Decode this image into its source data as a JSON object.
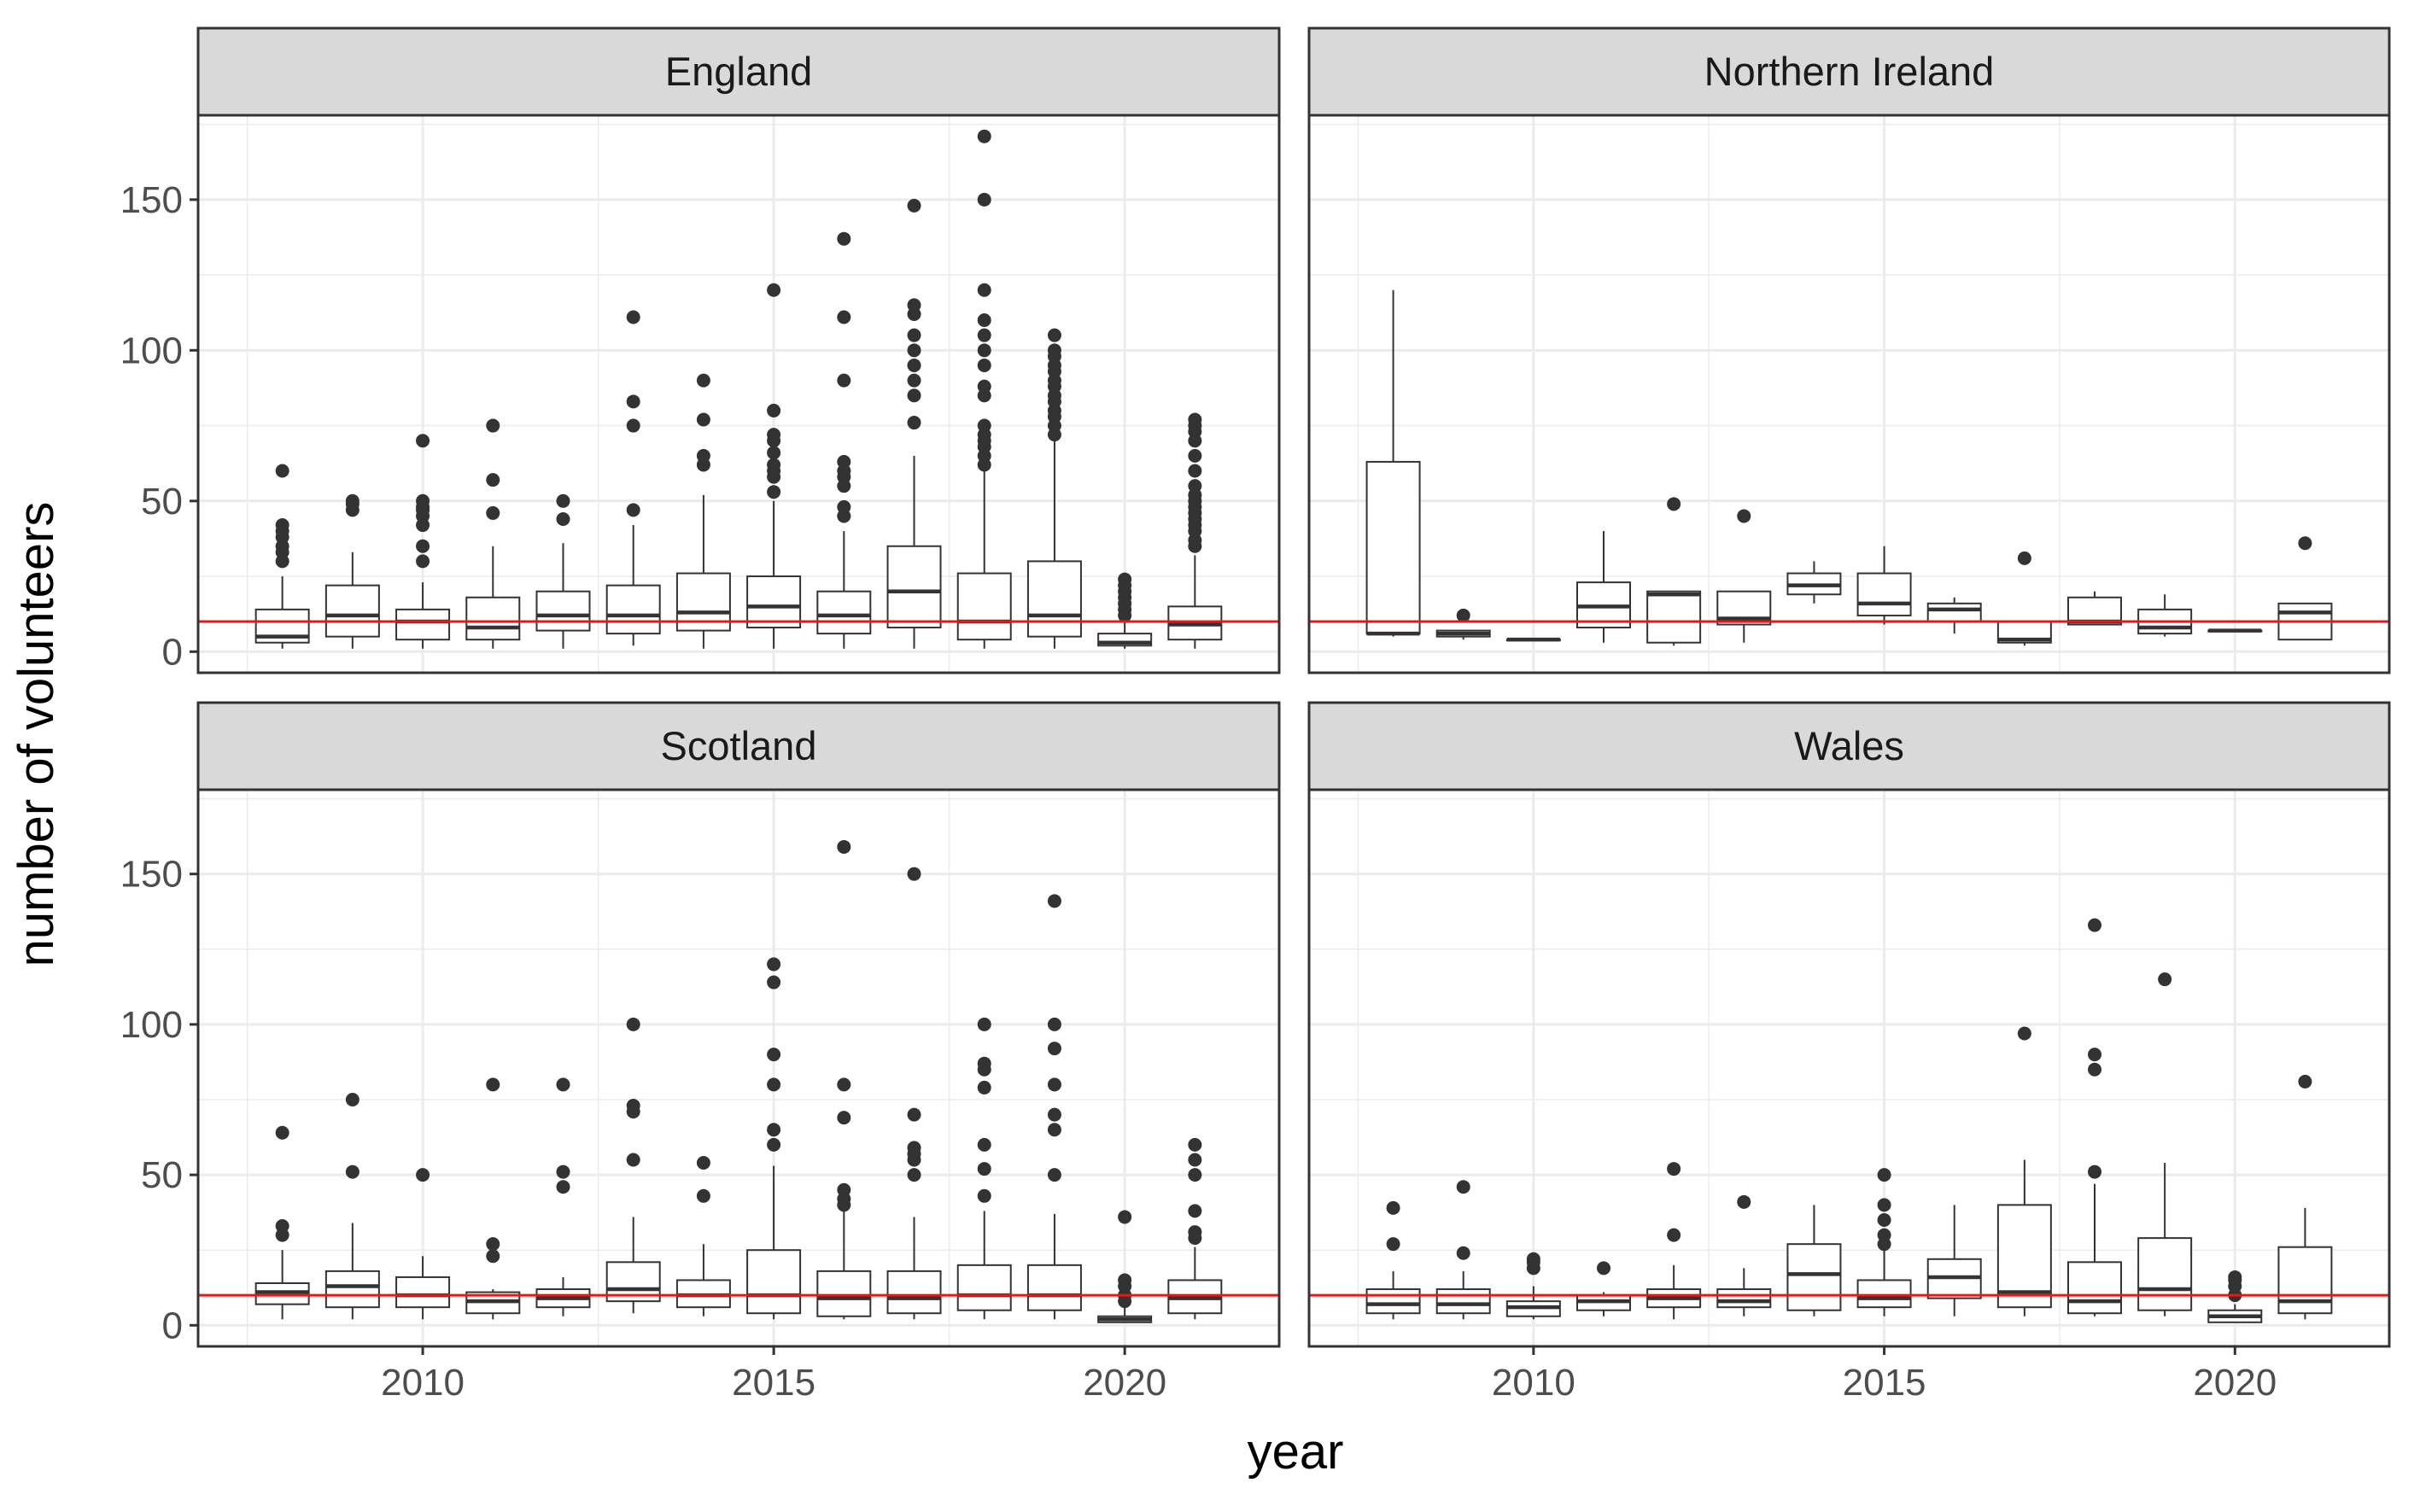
{
  "chart_data": {
    "type": "box",
    "facet_by": "country",
    "xlabel": "year",
    "ylabel": "number of volunteers",
    "x_ticks": [
      2010,
      2015,
      2020
    ],
    "y_ticks": [
      0,
      50,
      100,
      150
    ],
    "xlim": [
      2006.8,
      2022.2
    ],
    "ylim": [
      -7,
      178
    ],
    "reference_line": {
      "y": 10,
      "color": "#e31a1c"
    },
    "colors": {
      "box": "#333333",
      "points": "#333333",
      "strip_bg": "#d9d9d9",
      "grid": "#ebebeb"
    },
    "panels": [
      {
        "name": "England",
        "boxes": [
          {
            "year": 2008,
            "lw": 1,
            "q1": 3,
            "med": 5,
            "q3": 14,
            "hw": 25,
            "out": [
              30,
              33,
              35,
              38,
              40,
              42,
              60
            ]
          },
          {
            "year": 2009,
            "lw": 1,
            "q1": 5,
            "med": 12,
            "q3": 22,
            "hw": 33,
            "out": [
              47,
              49,
              50
            ]
          },
          {
            "year": 2010,
            "lw": 1,
            "q1": 4,
            "med": 10,
            "q3": 14,
            "hw": 23,
            "out": [
              30,
              35,
              42,
              45,
              47,
              48,
              50,
              70
            ]
          },
          {
            "year": 2011,
            "lw": 1,
            "q1": 4,
            "med": 8,
            "q3": 18,
            "hw": 35,
            "out": [
              46,
              57,
              75
            ]
          },
          {
            "year": 2012,
            "lw": 1,
            "q1": 7,
            "med": 12,
            "q3": 20,
            "hw": 36,
            "out": [
              44,
              50
            ]
          },
          {
            "year": 2013,
            "lw": 2,
            "q1": 6,
            "med": 12,
            "q3": 22,
            "hw": 42,
            "out": [
              47,
              75,
              83,
              111
            ]
          },
          {
            "year": 2014,
            "lw": 1,
            "q1": 7,
            "med": 13,
            "q3": 26,
            "hw": 52,
            "out": [
              62,
              65,
              77,
              90
            ]
          },
          {
            "year": 2015,
            "lw": 1,
            "q1": 8,
            "med": 15,
            "q3": 25,
            "hw": 50,
            "out": [
              53,
              58,
              60,
              62,
              66,
              70,
              72,
              80,
              120
            ]
          },
          {
            "year": 2016,
            "lw": 1,
            "q1": 6,
            "med": 12,
            "q3": 20,
            "hw": 40,
            "out": [
              45,
              48,
              55,
              58,
              60,
              63,
              90,
              111,
              137
            ]
          },
          {
            "year": 2017,
            "lw": 1,
            "q1": 8,
            "med": 20,
            "q3": 35,
            "hw": 65,
            "out": [
              76,
              85,
              90,
              95,
              100,
              105,
              112,
              115,
              148
            ]
          },
          {
            "year": 2018,
            "lw": 1,
            "q1": 4,
            "med": 10,
            "q3": 26,
            "hw": 60,
            "out": [
              62,
              65,
              68,
              70,
              72,
              75,
              85,
              88,
              95,
              100,
              105,
              110,
              120,
              150,
              171
            ]
          },
          {
            "year": 2019,
            "lw": 1,
            "q1": 5,
            "med": 12,
            "q3": 30,
            "hw": 70,
            "out": [
              72,
              75,
              78,
              80,
              83,
              85,
              88,
              90,
              93,
              95,
              98,
              100,
              105
            ]
          },
          {
            "year": 2020,
            "lw": 1,
            "q1": 2,
            "med": 3,
            "q3": 6,
            "hw": 10,
            "out": [
              12,
              14,
              16,
              18,
              20,
              22,
              24
            ]
          },
          {
            "year": 2021,
            "lw": 1,
            "q1": 4,
            "med": 9,
            "q3": 15,
            "hw": 32,
            "out": [
              35,
              37,
              40,
              42,
              44,
              46,
              48,
              50,
              52,
              55,
              60,
              65,
              70,
              73,
              75,
              77
            ]
          }
        ]
      },
      {
        "name": "Northern Ireland",
        "boxes": [
          {
            "year": 2008,
            "lw": 5,
            "q1": 6,
            "med": 6,
            "q3": 63,
            "hw": 120,
            "out": []
          },
          {
            "year": 2009,
            "lw": 4,
            "q1": 5,
            "med": 6,
            "q3": 7,
            "hw": 7,
            "out": [
              12
            ]
          },
          {
            "year": 2010,
            "lw": 4,
            "q1": 4,
            "med": 4,
            "q3": 4,
            "hw": 4,
            "out": []
          },
          {
            "year": 2011,
            "lw": 3,
            "q1": 8,
            "med": 15,
            "q3": 23,
            "hw": 40,
            "out": []
          },
          {
            "year": 2012,
            "lw": 2,
            "q1": 3,
            "med": 19,
            "q3": 20,
            "hw": 20,
            "out": [
              49
            ]
          },
          {
            "year": 2013,
            "lw": 3,
            "q1": 9,
            "med": 11,
            "q3": 20,
            "hw": 20,
            "out": [
              45
            ]
          },
          {
            "year": 2014,
            "lw": 16,
            "q1": 19,
            "med": 22,
            "q3": 26,
            "hw": 30,
            "out": []
          },
          {
            "year": 2015,
            "lw": 9,
            "q1": 12,
            "med": 16,
            "q3": 26,
            "hw": 35,
            "out": []
          },
          {
            "year": 2016,
            "lw": 6,
            "q1": 10,
            "med": 14,
            "q3": 16,
            "hw": 18,
            "out": []
          },
          {
            "year": 2017,
            "lw": 2,
            "q1": 3,
            "med": 4,
            "q3": 10,
            "hw": 10,
            "out": [
              31
            ]
          },
          {
            "year": 2018,
            "lw": 9,
            "q1": 9,
            "med": 10,
            "q3": 18,
            "hw": 20,
            "out": []
          },
          {
            "year": 2019,
            "lw": 5,
            "q1": 6,
            "med": 8,
            "q3": 14,
            "hw": 19,
            "out": []
          },
          {
            "year": 2020,
            "lw": 7,
            "q1": 7,
            "med": 7,
            "q3": 7,
            "hw": 7,
            "out": []
          },
          {
            "year": 2021,
            "lw": 4,
            "q1": 4,
            "med": 13,
            "q3": 16,
            "hw": 16,
            "out": [
              36
            ]
          }
        ]
      },
      {
        "name": "Scotland",
        "boxes": [
          {
            "year": 2008,
            "lw": 2,
            "q1": 7,
            "med": 11,
            "q3": 14,
            "hw": 25,
            "out": [
              30,
              33,
              64
            ]
          },
          {
            "year": 2009,
            "lw": 2,
            "q1": 6,
            "med": 13,
            "q3": 18,
            "hw": 34,
            "out": [
              51,
              75
            ]
          },
          {
            "year": 2010,
            "lw": 2,
            "q1": 6,
            "med": 10,
            "q3": 16,
            "hw": 23,
            "out": [
              50
            ]
          },
          {
            "year": 2011,
            "lw": 2,
            "q1": 4,
            "med": 8,
            "q3": 11,
            "hw": 12,
            "out": [
              23,
              27,
              80
            ]
          },
          {
            "year": 2012,
            "lw": 3,
            "q1": 6,
            "med": 9,
            "q3": 12,
            "hw": 16,
            "out": [
              46,
              51,
              80
            ]
          },
          {
            "year": 2013,
            "lw": 4,
            "q1": 8,
            "med": 12,
            "q3": 21,
            "hw": 36,
            "out": [
              55,
              71,
              73,
              100
            ]
          },
          {
            "year": 2014,
            "lw": 3,
            "q1": 6,
            "med": 10,
            "q3": 15,
            "hw": 27,
            "out": [
              43,
              54
            ]
          },
          {
            "year": 2015,
            "lw": 2,
            "q1": 4,
            "med": 10,
            "q3": 25,
            "hw": 53,
            "out": [
              60,
              65,
              80,
              90,
              114,
              120
            ]
          },
          {
            "year": 2016,
            "lw": 2,
            "q1": 3,
            "med": 9,
            "q3": 18,
            "hw": 38,
            "out": [
              40,
              42,
              45,
              69,
              80,
              159
            ]
          },
          {
            "year": 2017,
            "lw": 2,
            "q1": 4,
            "med": 9,
            "q3": 18,
            "hw": 36,
            "out": [
              50,
              55,
              57,
              59,
              70,
              150
            ]
          },
          {
            "year": 2018,
            "lw": 2,
            "q1": 5,
            "med": 10,
            "q3": 20,
            "hw": 38,
            "out": [
              43,
              52,
              60,
              79,
              85,
              87,
              100
            ]
          },
          {
            "year": 2019,
            "lw": 2,
            "q1": 5,
            "med": 10,
            "q3": 20,
            "hw": 37,
            "out": [
              50,
              65,
              70,
              80,
              92,
              100,
              141
            ]
          },
          {
            "year": 2020,
            "lw": 1,
            "q1": 1,
            "med": 2,
            "q3": 3,
            "hw": 6,
            "out": [
              8,
              10,
              13,
              15,
              36
            ]
          },
          {
            "year": 2021,
            "lw": 2,
            "q1": 4,
            "med": 9,
            "q3": 15,
            "hw": 26,
            "out": [
              29,
              31,
              38,
              50,
              55,
              60
            ]
          }
        ]
      },
      {
        "name": "Wales",
        "boxes": [
          {
            "year": 2008,
            "lw": 2,
            "q1": 4,
            "med": 7,
            "q3": 12,
            "hw": 18,
            "out": [
              27,
              39
            ]
          },
          {
            "year": 2009,
            "lw": 2,
            "q1": 4,
            "med": 7,
            "q3": 12,
            "hw": 18,
            "out": [
              24,
              46
            ]
          },
          {
            "year": 2010,
            "lw": 2,
            "q1": 3,
            "med": 6,
            "q3": 8,
            "hw": 13,
            "out": [
              19,
              21,
              22
            ]
          },
          {
            "year": 2011,
            "lw": 3,
            "q1": 5,
            "med": 8,
            "q3": 10,
            "hw": 11,
            "out": [
              19
            ]
          },
          {
            "year": 2012,
            "lw": 2,
            "q1": 6,
            "med": 9,
            "q3": 12,
            "hw": 20,
            "out": [
              30,
              52
            ]
          },
          {
            "year": 2013,
            "lw": 3,
            "q1": 6,
            "med": 8,
            "q3": 12,
            "hw": 19,
            "out": [
              41
            ]
          },
          {
            "year": 2014,
            "lw": 3,
            "q1": 5,
            "med": 17,
            "q3": 27,
            "hw": 40,
            "out": []
          },
          {
            "year": 2015,
            "lw": 3,
            "q1": 6,
            "med": 9,
            "q3": 15,
            "hw": 25,
            "out": [
              27,
              30,
              35,
              40,
              50
            ]
          },
          {
            "year": 2016,
            "lw": 3,
            "q1": 9,
            "med": 16,
            "q3": 22,
            "hw": 40,
            "out": []
          },
          {
            "year": 2017,
            "lw": 3,
            "q1": 6,
            "med": 11,
            "q3": 40,
            "hw": 55,
            "out": [
              97
            ]
          },
          {
            "year": 2018,
            "lw": 3,
            "q1": 4,
            "med": 8,
            "q3": 21,
            "hw": 47,
            "out": [
              51,
              85,
              90,
              133
            ]
          },
          {
            "year": 2019,
            "lw": 3,
            "q1": 5,
            "med": 12,
            "q3": 29,
            "hw": 54,
            "out": [
              115
            ]
          },
          {
            "year": 2020,
            "lw": 1,
            "q1": 1,
            "med": 3,
            "q3": 5,
            "hw": 7,
            "out": [
              10,
              13,
              15,
              16
            ]
          },
          {
            "year": 2021,
            "lw": 2,
            "q1": 4,
            "med": 8,
            "q3": 26,
            "hw": 39,
            "out": [
              81
            ]
          }
        ]
      }
    ]
  }
}
